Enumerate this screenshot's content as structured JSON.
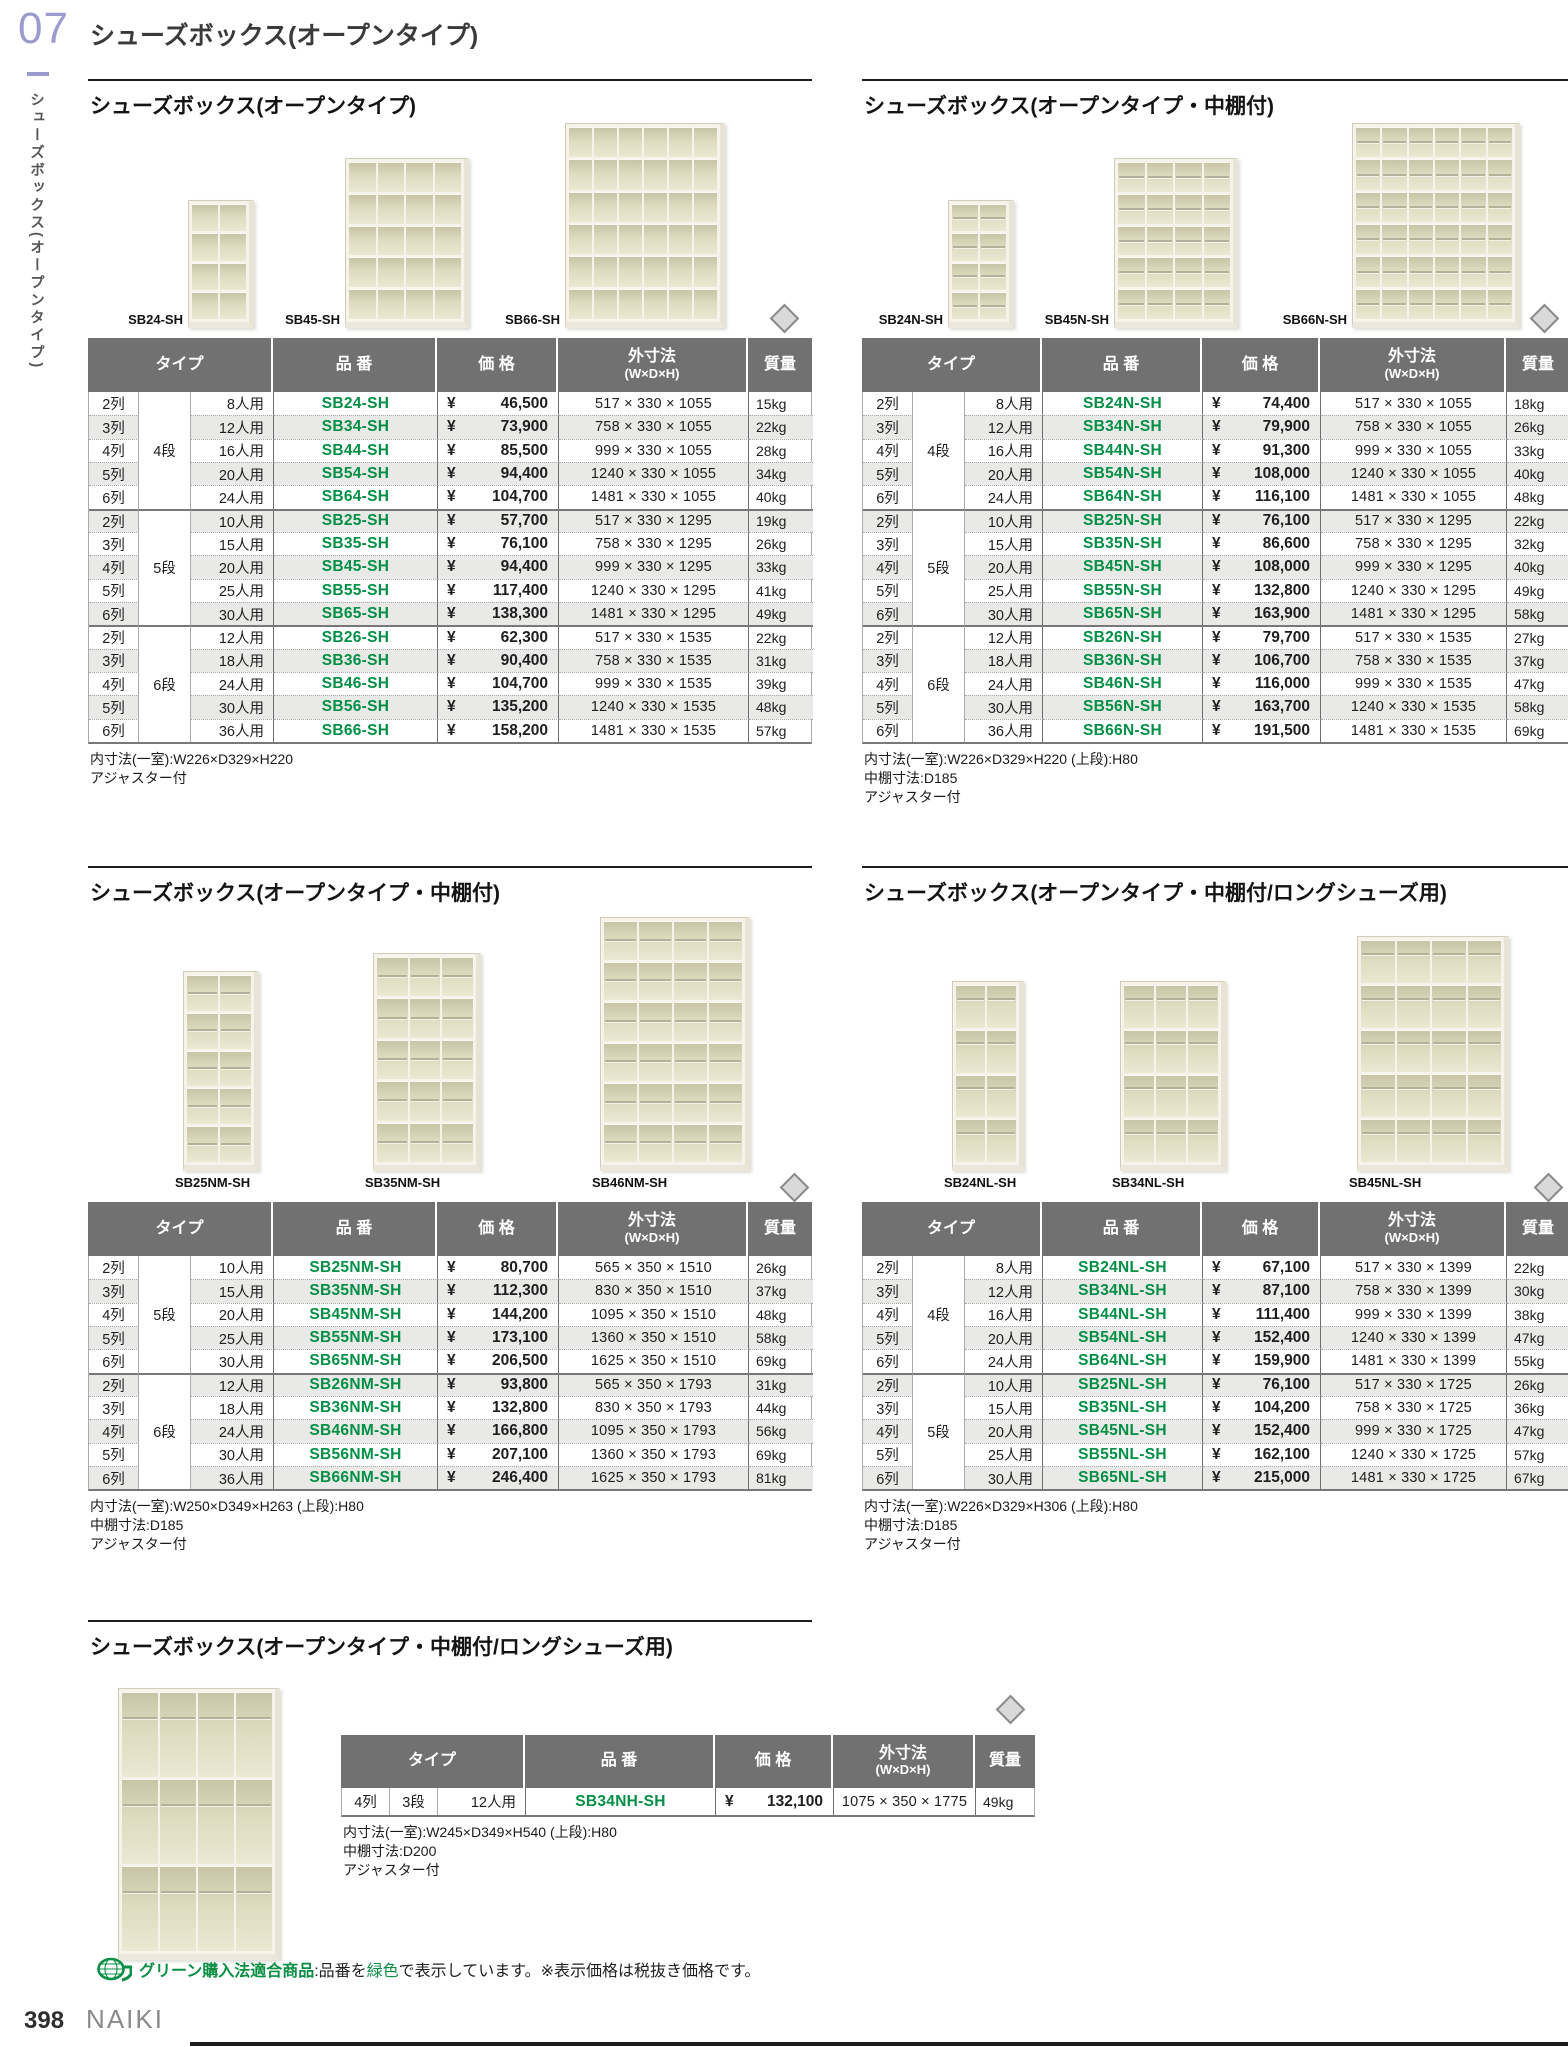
{
  "page": {
    "chapter_number": "07",
    "chapter_title": "シューズボックス(オープンタイプ)",
    "sidebar_vertical_text": "シューズボックス(オープンタイプ)",
    "currency": "¥",
    "page_number": "398",
    "brand": "NAIKI",
    "green_note": {
      "bold": "グリーン購入法適合商品",
      "pre": ":品番を",
      "green_word": "緑色",
      "post": "で表示しています。",
      "tax": "※表示価格は税抜き価格です。"
    },
    "colors": {
      "accent_green": "#008f45",
      "chapter_purple": "#9b9bcd",
      "header_gray": "#717171",
      "zebra_gray": "#e9e9e7"
    }
  },
  "table_headers": {
    "type": "タイプ",
    "code": "品 番",
    "price": "価 格",
    "dims_line1": "外寸法",
    "dims_line2": "(W×D×H)",
    "weight": "質量"
  },
  "sections": [
    {
      "title": "シューズボックス(オープンタイプ)",
      "image_labels": [
        "SB24-SH",
        "SB45-SH",
        "SB66-SH"
      ],
      "groups": [
        {
          "dan": "4段",
          "rows": [
            {
              "retsu": "2列",
              "nin": "8人用",
              "code": "SB24-SH",
              "price": "46,500",
              "dims": "517 × 330 × 1055",
              "weight": "15kg"
            },
            {
              "retsu": "3列",
              "nin": "12人用",
              "code": "SB34-SH",
              "price": "73,900",
              "dims": "758 × 330 × 1055",
              "weight": "22kg"
            },
            {
              "retsu": "4列",
              "nin": "16人用",
              "code": "SB44-SH",
              "price": "85,500",
              "dims": "999 × 330 × 1055",
              "weight": "28kg"
            },
            {
              "retsu": "5列",
              "nin": "20人用",
              "code": "SB54-SH",
              "price": "94,400",
              "dims": "1240 × 330 × 1055",
              "weight": "34kg"
            },
            {
              "retsu": "6列",
              "nin": "24人用",
              "code": "SB64-SH",
              "price": "104,700",
              "dims": "1481 × 330 × 1055",
              "weight": "40kg"
            }
          ]
        },
        {
          "dan": "5段",
          "rows": [
            {
              "retsu": "2列",
              "nin": "10人用",
              "code": "SB25-SH",
              "price": "57,700",
              "dims": "517 × 330 × 1295",
              "weight": "19kg"
            },
            {
              "retsu": "3列",
              "nin": "15人用",
              "code": "SB35-SH",
              "price": "76,100",
              "dims": "758 × 330 × 1295",
              "weight": "26kg"
            },
            {
              "retsu": "4列",
              "nin": "20人用",
              "code": "SB45-SH",
              "price": "94,400",
              "dims": "999 × 330 × 1295",
              "weight": "33kg"
            },
            {
              "retsu": "5列",
              "nin": "25人用",
              "code": "SB55-SH",
              "price": "117,400",
              "dims": "1240 × 330 × 1295",
              "weight": "41kg"
            },
            {
              "retsu": "6列",
              "nin": "30人用",
              "code": "SB65-SH",
              "price": "138,300",
              "dims": "1481 × 330 × 1295",
              "weight": "49kg"
            }
          ]
        },
        {
          "dan": "6段",
          "rows": [
            {
              "retsu": "2列",
              "nin": "12人用",
              "code": "SB26-SH",
              "price": "62,300",
              "dims": "517 × 330 × 1535",
              "weight": "22kg"
            },
            {
              "retsu": "3列",
              "nin": "18人用",
              "code": "SB36-SH",
              "price": "90,400",
              "dims": "758 × 330 × 1535",
              "weight": "31kg"
            },
            {
              "retsu": "4列",
              "nin": "24人用",
              "code": "SB46-SH",
              "price": "104,700",
              "dims": "999 × 330 × 1535",
              "weight": "39kg"
            },
            {
              "retsu": "5列",
              "nin": "30人用",
              "code": "SB56-SH",
              "price": "135,200",
              "dims": "1240 × 330 × 1535",
              "weight": "48kg"
            },
            {
              "retsu": "6列",
              "nin": "36人用",
              "code": "SB66-SH",
              "price": "158,200",
              "dims": "1481 × 330 × 1535",
              "weight": "57kg"
            }
          ]
        }
      ],
      "notes": [
        "内寸法(一室):W226×D329×H220",
        "アジャスター付"
      ]
    },
    {
      "title": "シューズボックス(オープンタイプ・中棚付)",
      "image_labels": [
        "SB24N-SH",
        "SB45N-SH",
        "SB66N-SH"
      ],
      "groups": [
        {
          "dan": "4段",
          "rows": [
            {
              "retsu": "2列",
              "nin": "8人用",
              "code": "SB24N-SH",
              "price": "74,400",
              "dims": "517 × 330 × 1055",
              "weight": "18kg"
            },
            {
              "retsu": "3列",
              "nin": "12人用",
              "code": "SB34N-SH",
              "price": "79,900",
              "dims": "758 × 330 × 1055",
              "weight": "26kg"
            },
            {
              "retsu": "4列",
              "nin": "16人用",
              "code": "SB44N-SH",
              "price": "91,300",
              "dims": "999 × 330 × 1055",
              "weight": "33kg"
            },
            {
              "retsu": "5列",
              "nin": "20人用",
              "code": "SB54N-SH",
              "price": "108,000",
              "dims": "1240 × 330 × 1055",
              "weight": "40kg"
            },
            {
              "retsu": "6列",
              "nin": "24人用",
              "code": "SB64N-SH",
              "price": "116,100",
              "dims": "1481 × 330 × 1055",
              "weight": "48kg"
            }
          ]
        },
        {
          "dan": "5段",
          "rows": [
            {
              "retsu": "2列",
              "nin": "10人用",
              "code": "SB25N-SH",
              "price": "76,100",
              "dims": "517 × 330 × 1295",
              "weight": "22kg"
            },
            {
              "retsu": "3列",
              "nin": "15人用",
              "code": "SB35N-SH",
              "price": "86,600",
              "dims": "758 × 330 × 1295",
              "weight": "32kg"
            },
            {
              "retsu": "4列",
              "nin": "20人用",
              "code": "SB45N-SH",
              "price": "108,000",
              "dims": "999 × 330 × 1295",
              "weight": "40kg"
            },
            {
              "retsu": "5列",
              "nin": "25人用",
              "code": "SB55N-SH",
              "price": "132,800",
              "dims": "1240 × 330 × 1295",
              "weight": "49kg"
            },
            {
              "retsu": "6列",
              "nin": "30人用",
              "code": "SB65N-SH",
              "price": "163,900",
              "dims": "1481 × 330 × 1295",
              "weight": "58kg"
            }
          ]
        },
        {
          "dan": "6段",
          "rows": [
            {
              "retsu": "2列",
              "nin": "12人用",
              "code": "SB26N-SH",
              "price": "79,700",
              "dims": "517 × 330 × 1535",
              "weight": "27kg"
            },
            {
              "retsu": "3列",
              "nin": "18人用",
              "code": "SB36N-SH",
              "price": "106,700",
              "dims": "758 × 330 × 1535",
              "weight": "37kg"
            },
            {
              "retsu": "4列",
              "nin": "24人用",
              "code": "SB46N-SH",
              "price": "116,000",
              "dims": "999 × 330 × 1535",
              "weight": "47kg"
            },
            {
              "retsu": "5列",
              "nin": "30人用",
              "code": "SB56N-SH",
              "price": "163,700",
              "dims": "1240 × 330 × 1535",
              "weight": "58kg"
            },
            {
              "retsu": "6列",
              "nin": "36人用",
              "code": "SB66N-SH",
              "price": "191,500",
              "dims": "1481 × 330 × 1535",
              "weight": "69kg"
            }
          ]
        }
      ],
      "notes": [
        "内寸法(一室):W226×D329×H220  (上段):H80",
        "中棚寸法:D185",
        "アジャスター付"
      ]
    },
    {
      "title": "シューズボックス(オープンタイプ・中棚付)",
      "image_labels": [
        "SB25NM-SH",
        "SB35NM-SH",
        "SB46NM-SH"
      ],
      "groups": [
        {
          "dan": "5段",
          "rows": [
            {
              "retsu": "2列",
              "nin": "10人用",
              "code": "SB25NM-SH",
              "price": "80,700",
              "dims": "565 × 350 × 1510",
              "weight": "26kg"
            },
            {
              "retsu": "3列",
              "nin": "15人用",
              "code": "SB35NM-SH",
              "price": "112,300",
              "dims": "830 × 350 × 1510",
              "weight": "37kg"
            },
            {
              "retsu": "4列",
              "nin": "20人用",
              "code": "SB45NM-SH",
              "price": "144,200",
              "dims": "1095 × 350 × 1510",
              "weight": "48kg"
            },
            {
              "retsu": "5列",
              "nin": "25人用",
              "code": "SB55NM-SH",
              "price": "173,100",
              "dims": "1360 × 350 × 1510",
              "weight": "58kg"
            },
            {
              "retsu": "6列",
              "nin": "30人用",
              "code": "SB65NM-SH",
              "price": "206,500",
              "dims": "1625 × 350 × 1510",
              "weight": "69kg"
            }
          ]
        },
        {
          "dan": "6段",
          "rows": [
            {
              "retsu": "2列",
              "nin": "12人用",
              "code": "SB26NM-SH",
              "price": "93,800",
              "dims": "565 × 350 × 1793",
              "weight": "31kg"
            },
            {
              "retsu": "3列",
              "nin": "18人用",
              "code": "SB36NM-SH",
              "price": "132,800",
              "dims": "830 × 350 × 1793",
              "weight": "44kg"
            },
            {
              "retsu": "4列",
              "nin": "24人用",
              "code": "SB46NM-SH",
              "price": "166,800",
              "dims": "1095 × 350 × 1793",
              "weight": "56kg"
            },
            {
              "retsu": "5列",
              "nin": "30人用",
              "code": "SB56NM-SH",
              "price": "207,100",
              "dims": "1360 × 350 × 1793",
              "weight": "69kg"
            },
            {
              "retsu": "6列",
              "nin": "36人用",
              "code": "SB66NM-SH",
              "price": "246,400",
              "dims": "1625 × 350 × 1793",
              "weight": "81kg"
            }
          ]
        }
      ],
      "notes": [
        "内寸法(一室):W250×D349×H263  (上段):H80",
        "中棚寸法:D185",
        "アジャスター付"
      ]
    },
    {
      "title": "シューズボックス(オープンタイプ・中棚付/ロングシューズ用)",
      "image_labels": [
        "SB24NL-SH",
        "SB34NL-SH",
        "SB45NL-SH"
      ],
      "groups": [
        {
          "dan": "4段",
          "rows": [
            {
              "retsu": "2列",
              "nin": "8人用",
              "code": "SB24NL-SH",
              "price": "67,100",
              "dims": "517 × 330 × 1399",
              "weight": "22kg"
            },
            {
              "retsu": "3列",
              "nin": "12人用",
              "code": "SB34NL-SH",
              "price": "87,100",
              "dims": "758 × 330 × 1399",
              "weight": "30kg"
            },
            {
              "retsu": "4列",
              "nin": "16人用",
              "code": "SB44NL-SH",
              "price": "111,400",
              "dims": "999 × 330 × 1399",
              "weight": "38kg"
            },
            {
              "retsu": "5列",
              "nin": "20人用",
              "code": "SB54NL-SH",
              "price": "152,400",
              "dims": "1240 × 330 × 1399",
              "weight": "47kg"
            },
            {
              "retsu": "6列",
              "nin": "24人用",
              "code": "SB64NL-SH",
              "price": "159,900",
              "dims": "1481 × 330 × 1399",
              "weight": "55kg"
            }
          ]
        },
        {
          "dan": "5段",
          "rows": [
            {
              "retsu": "2列",
              "nin": "10人用",
              "code": "SB25NL-SH",
              "price": "76,100",
              "dims": "517 × 330 × 1725",
              "weight": "26kg"
            },
            {
              "retsu": "3列",
              "nin": "15人用",
              "code": "SB35NL-SH",
              "price": "104,200",
              "dims": "758 × 330 × 1725",
              "weight": "36kg"
            },
            {
              "retsu": "4列",
              "nin": "20人用",
              "code": "SB45NL-SH",
              "price": "152,400",
              "dims": "999 × 330 × 1725",
              "weight": "47kg"
            },
            {
              "retsu": "5列",
              "nin": "25人用",
              "code": "SB55NL-SH",
              "price": "162,100",
              "dims": "1240 × 330 × 1725",
              "weight": "57kg"
            },
            {
              "retsu": "6列",
              "nin": "30人用",
              "code": "SB65NL-SH",
              "price": "215,000",
              "dims": "1481 × 330 × 1725",
              "weight": "67kg"
            }
          ]
        }
      ],
      "notes": [
        "内寸法(一室):W226×D329×H306  (上段):H80",
        "中棚寸法:D185",
        "アジャスター付"
      ]
    },
    {
      "title": "シューズボックス(オープンタイプ・中棚付/ロングシューズ用)",
      "image_labels": [],
      "groups": [
        {
          "dan": "3段",
          "rows": [
            {
              "retsu": "4列",
              "nin": "12人用",
              "code": "SB34NH-SH",
              "price": "132,100",
              "dims": "1075 × 350 × 1775",
              "weight": "49kg"
            }
          ]
        }
      ],
      "notes": [
        "内寸法(一室):W245×D349×H540  (上段):H80",
        "中棚寸法:D200",
        "アジャスター付"
      ]
    }
  ]
}
